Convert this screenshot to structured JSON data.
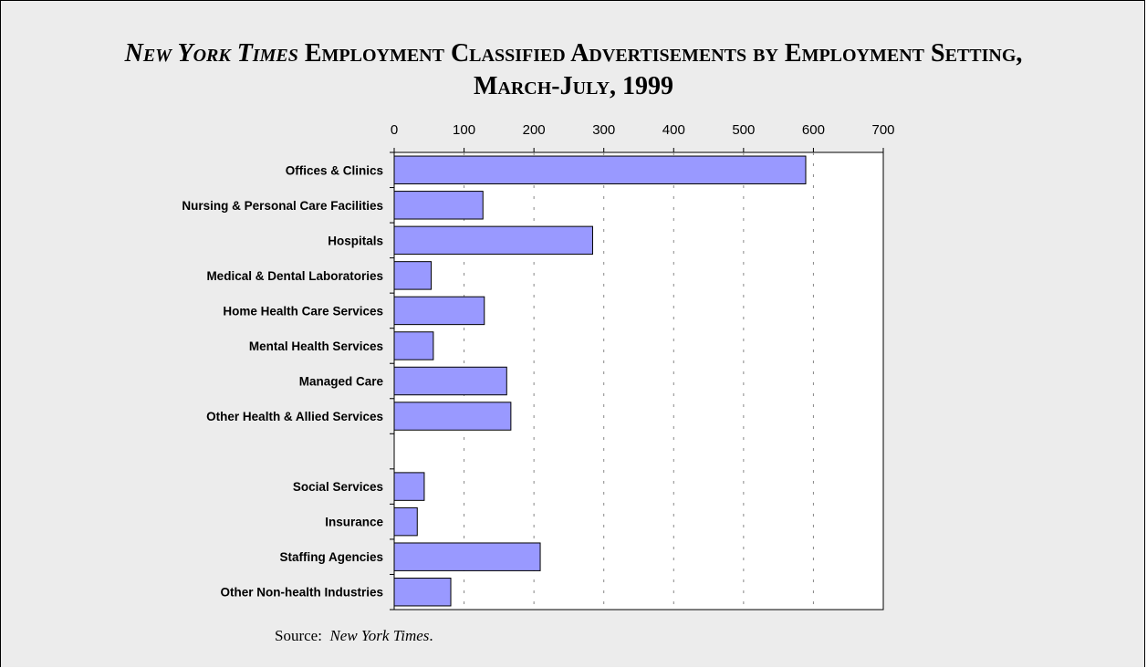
{
  "title": {
    "italic_part": "New York Times",
    "rest_line1": " Employment Classified Advertisements by Employment Setting,",
    "line2": "March-July, 1999"
  },
  "source": {
    "label": "Source:",
    "name": "New York Times",
    "trailing": "."
  },
  "chart_data": {
    "type": "bar",
    "orientation": "horizontal",
    "title": "New York Times Employment Classified Advertisements by Employment Setting, March-July, 1999",
    "categories": [
      "Offices & Clinics",
      "Nursing & Personal Care Facilities",
      "Hospitals",
      "Medical & Dental Laboratories",
      "Home Health Care Services",
      "Mental Health Services",
      "Managed Care",
      "Other Health & Allied Services",
      "",
      "Social Services",
      "Insurance",
      "Staffing Agencies",
      "Other Non-health Industries"
    ],
    "values": [
      589,
      127,
      284,
      53,
      129,
      56,
      161,
      167,
      null,
      43,
      33,
      209,
      81
    ],
    "xlim": [
      0,
      700
    ],
    "xticks": [
      0,
      100,
      200,
      300,
      400,
      500,
      600,
      700
    ],
    "xlabel": "",
    "ylabel": "",
    "grid": "vertical dashed",
    "legend": "none",
    "colors": {
      "bar_fill": "#9999ff",
      "bar_stroke": "#000000",
      "plot_bg": "#ffffff",
      "frame_bg": "#ececec"
    }
  }
}
